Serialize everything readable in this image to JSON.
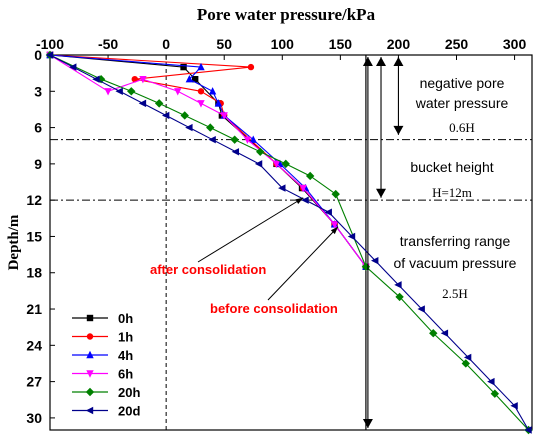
{
  "chart_data": {
    "type": "line",
    "title": "Pore water pressure/kPa",
    "ylabel": "Depth/m",
    "x_axis_position": "top",
    "y_axis_inverted": true,
    "xlim": [
      -100,
      315
    ],
    "ylim": [
      0,
      31
    ],
    "x_ticks": [
      -100,
      -50,
      0,
      50,
      100,
      150,
      200,
      250,
      300
    ],
    "y_ticks": [
      0,
      3,
      6,
      9,
      12,
      15,
      18,
      21,
      24,
      27,
      30
    ],
    "x_tick_labels": [
      "-100",
      "-50",
      "0",
      "50",
      "100",
      "150",
      "200",
      "250",
      "300"
    ],
    "y_tick_labels": [
      "0",
      "3",
      "6",
      "9",
      "12",
      "15",
      "18",
      "21",
      "24",
      "27",
      "30"
    ],
    "legend_position": "bottom-left",
    "series": [
      {
        "name": "0h",
        "color": "#000000",
        "marker": "square",
        "x": [
          -100,
          15,
          25,
          45,
          48,
          95,
          117,
          145,
          172
        ],
        "y": [
          0,
          1,
          2,
          4,
          5,
          9,
          11,
          14,
          17.5
        ]
      },
      {
        "name": "1h",
        "color": "#ff0000",
        "marker": "circle",
        "x": [
          -100,
          73,
          -27,
          30,
          47,
          50,
          95,
          118,
          145,
          172
        ],
        "y": [
          0,
          1,
          2,
          3,
          4,
          5,
          9,
          11,
          14,
          17.5
        ]
      },
      {
        "name": "4h",
        "color": "#0000ff",
        "marker": "triangle-up",
        "x": [
          -100,
          30,
          20,
          40,
          45,
          50,
          75,
          98,
          120,
          145,
          172
        ],
        "y": [
          0,
          1,
          2,
          3,
          4,
          5,
          7,
          9,
          11,
          14,
          17.5
        ]
      },
      {
        "name": "6h",
        "color": "#ff00ff",
        "marker": "triangle-down",
        "x": [
          -100,
          -50,
          -20,
          10,
          30,
          50,
          70,
          95,
          118,
          145,
          172
        ],
        "y": [
          0,
          3,
          2,
          3,
          4,
          5,
          7,
          9,
          11,
          14,
          17.5
        ]
      },
      {
        "name": "20h",
        "color": "#008000",
        "marker": "diamond",
        "x": [
          -100,
          -56,
          -30,
          -6,
          16,
          38,
          59,
          81,
          103,
          124,
          146,
          172,
          201,
          230,
          258,
          283,
          312
        ],
        "y": [
          0,
          2,
          3,
          4,
          5,
          6,
          7,
          8,
          9,
          10,
          11.5,
          17.5,
          20,
          23,
          25.5,
          28,
          31
        ]
      },
      {
        "name": "20d",
        "color": "#00008b",
        "marker": "triangle-left",
        "x": [
          -100,
          -80,
          -60,
          -40,
          -20,
          0,
          20,
          40,
          60,
          80,
          100,
          120,
          140,
          160,
          180,
          200,
          220,
          240,
          260,
          280,
          300,
          312
        ],
        "y": [
          0,
          1,
          2,
          3,
          4,
          5,
          6,
          7,
          8,
          9,
          11,
          12,
          13,
          15,
          17,
          19,
          21,
          23,
          25,
          27,
          29,
          31
        ]
      }
    ],
    "annotations": {
      "after": "after consolidation",
      "before": "before consolidation",
      "negative_1": "negative pore",
      "negative_2": "water pressure",
      "h06": "0.6H",
      "bucket": "bucket height",
      "h12": "H=12m",
      "transfer_1": "transferring range",
      "transfer_2": "of vacuum pressure",
      "h25": "2.5H"
    },
    "annotation_color": "#ff0000",
    "reference_lines": {
      "depth_dashdot": [
        7,
        12
      ],
      "vertical_solid_x": [
        0,
        172
      ]
    }
  }
}
